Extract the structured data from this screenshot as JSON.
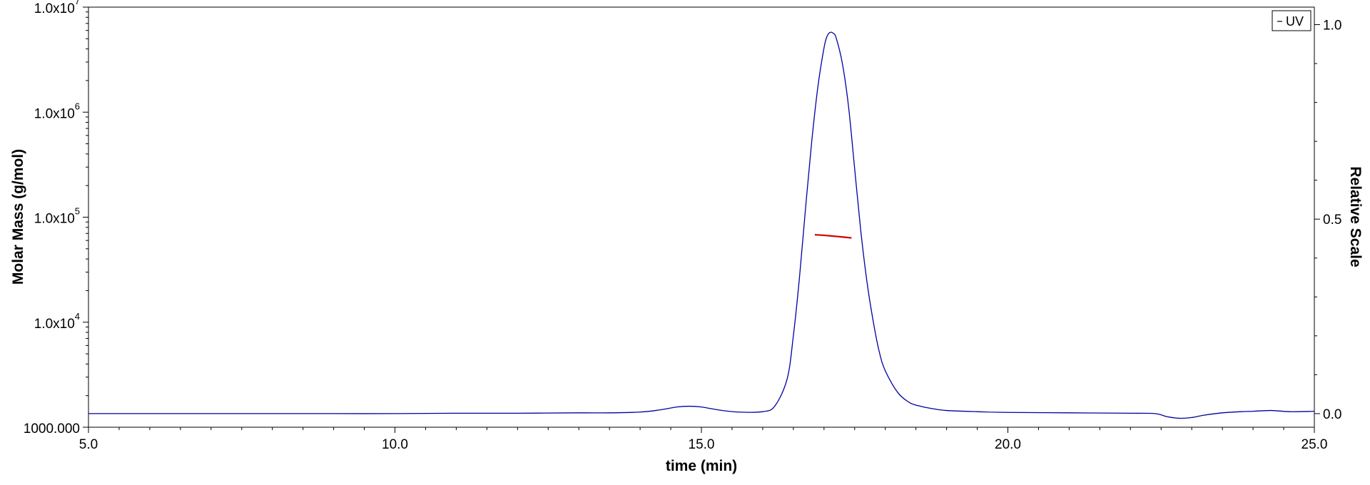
{
  "chart_data": {
    "type": "line",
    "xlabel": "time (min)",
    "ylabel_left": "Molar Mass (g/mol)",
    "ylabel_right": "Relative Scale",
    "xlim": [
      5.0,
      25.0
    ],
    "x_ticks": [
      {
        "value": 5,
        "label": "5.0"
      },
      {
        "value": 10,
        "label": "10.0"
      },
      {
        "value": 15,
        "label": "15.0"
      },
      {
        "value": 20,
        "label": "20.0"
      },
      {
        "value": 25,
        "label": "25.0"
      }
    ],
    "y_left_scale": "log",
    "y_left_lim": [
      1000,
      10000000
    ],
    "y_left_ticks": [
      {
        "value": 1000,
        "base": "1000.000",
        "exp": ""
      },
      {
        "value": 10000,
        "base": "1.0x10",
        "exp": "4"
      },
      {
        "value": 100000,
        "base": "1.0x10",
        "exp": "5"
      },
      {
        "value": 1000000,
        "base": "1.0x10",
        "exp": "6"
      },
      {
        "value": 10000000,
        "base": "1.0x10",
        "exp": "7"
      }
    ],
    "y_right_lim": [
      -0.035,
      1.045
    ],
    "y_right_ticks": [
      {
        "value": 0,
        "label": "0.0"
      },
      {
        "value": 0.5,
        "label": "0.5"
      },
      {
        "value": 1.0,
        "label": "1.0"
      }
    ],
    "legend": {
      "position": "top-right",
      "entries": [
        {
          "label": "UV",
          "color": "#0000a0"
        }
      ]
    },
    "series": [
      {
        "name": "UV",
        "axis": "right",
        "color": "#0000a0",
        "x": [
          5.0,
          6.0,
          7.0,
          8.0,
          9.0,
          10.0,
          11.0,
          12.0,
          13.0,
          13.5,
          14.0,
          14.3,
          14.6,
          14.8,
          15.0,
          15.3,
          15.6,
          16.0,
          16.2,
          16.4,
          16.5,
          16.6,
          16.7,
          16.8,
          16.9,
          17.0,
          17.05,
          17.1,
          17.15,
          17.2,
          17.3,
          17.4,
          17.5,
          17.6,
          17.7,
          17.8,
          17.9,
          18.0,
          18.2,
          18.4,
          18.6,
          18.8,
          19.0,
          19.5,
          20.0,
          21.0,
          22.0,
          22.4,
          22.6,
          22.8,
          23.0,
          23.2,
          23.5,
          23.8,
          24.0,
          24.3,
          24.6,
          25.0
        ],
        "y": [
          0.0,
          0.0,
          0.0,
          0.0,
          0.0,
          0.0,
          0.001,
          0.001,
          0.002,
          0.002,
          0.004,
          0.009,
          0.017,
          0.019,
          0.017,
          0.009,
          0.004,
          0.005,
          0.02,
          0.09,
          0.2,
          0.35,
          0.53,
          0.7,
          0.84,
          0.94,
          0.97,
          0.98,
          0.978,
          0.965,
          0.9,
          0.79,
          0.63,
          0.47,
          0.34,
          0.24,
          0.16,
          0.11,
          0.055,
          0.028,
          0.018,
          0.012,
          0.008,
          0.005,
          0.003,
          0.002,
          0.001,
          0.0,
          -0.008,
          -0.012,
          -0.01,
          -0.004,
          0.002,
          0.005,
          0.006,
          0.008,
          0.005,
          0.006
        ]
      },
      {
        "name": "Molar Mass",
        "axis": "left",
        "color": "#cc0000",
        "x": [
          16.85,
          17.0,
          17.15,
          17.3,
          17.45
        ],
        "y": [
          68000,
          67200,
          66000,
          64800,
          63500
        ]
      }
    ]
  }
}
